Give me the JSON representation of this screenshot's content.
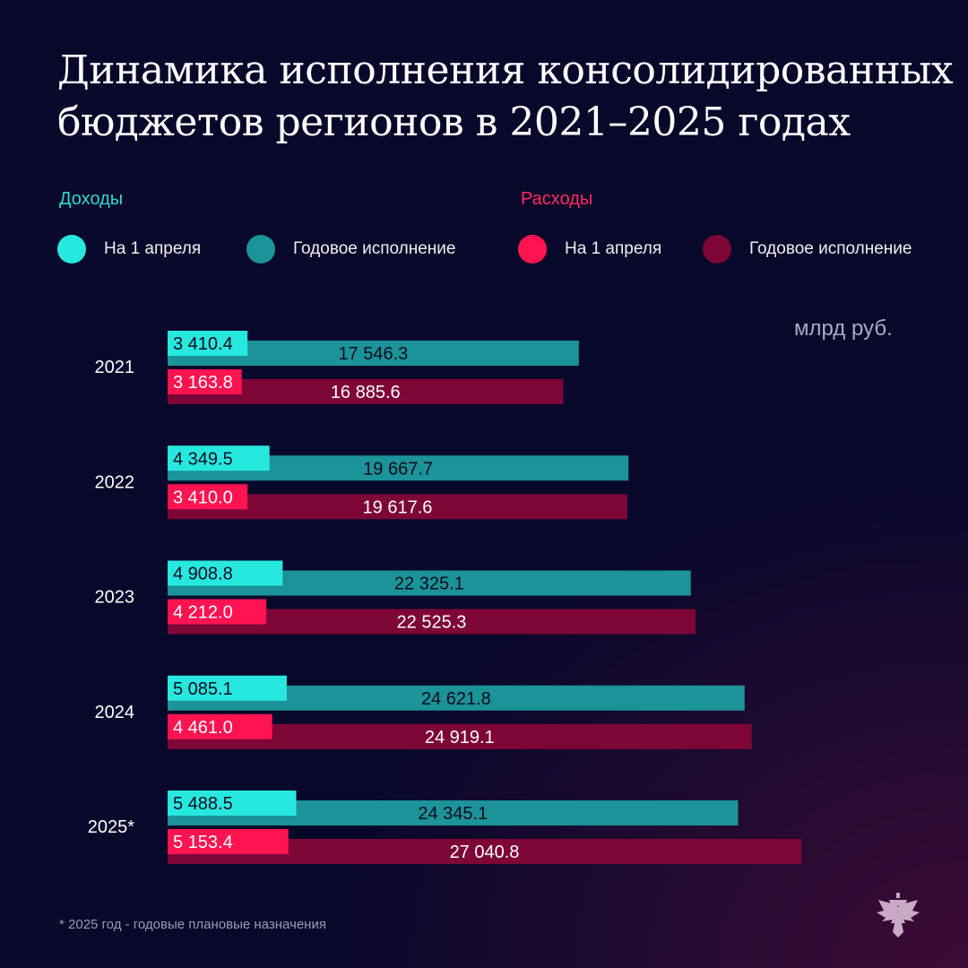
{
  "title_line1": "Динамика исполнения консолидированных",
  "title_line2": "бюджетов регионов в 2021–2025 годах",
  "legend": {
    "income_head": "Доходы",
    "expense_head": "Расходы",
    "items": [
      "На 1 апреля",
      "Годовое исполнение",
      "На 1 апреля",
      "Годовое исполнение"
    ]
  },
  "colors": {
    "income_apr": "#27e8df",
    "income_year": "#1b9398",
    "expense_apr": "#ff1350",
    "expense_year": "#7e0637",
    "income_head": "#2fd6d0",
    "expense_head": "#ff2a62"
  },
  "unit": "млрд руб.",
  "footnote": "* 2025 год - годовые плановые назначения",
  "chart_data": {
    "type": "bar",
    "orientation": "horizontal",
    "categories": [
      "2021",
      "2022",
      "2023",
      "2024",
      "2025*"
    ],
    "series": [
      {
        "name": "Доходы — На 1 апреля",
        "values": [
          3410.4,
          4349.5,
          4908.8,
          5085.1,
          5488.5
        ],
        "labels": [
          "3 410.4",
          "4 349.5",
          "4 908.8",
          "5 085.1",
          "5 488.5"
        ]
      },
      {
        "name": "Доходы — Годовое исполнение",
        "values": [
          17546.3,
          19667.7,
          22325.1,
          24621.8,
          24345.1
        ],
        "labels": [
          "17 546.3",
          "19 667.7",
          "22 325.1",
          "24 621.8",
          "24 345.1"
        ]
      },
      {
        "name": "Расходы — На 1 апреля",
        "values": [
          3163.8,
          3410.0,
          4212.0,
          4461.0,
          5153.4
        ],
        "labels": [
          "3 163.8",
          "3 410.0",
          "4 212.0",
          "4 461.0",
          "5 153.4"
        ]
      },
      {
        "name": "Расходы — Годовое исполнение",
        "values": [
          16885.6,
          19617.6,
          22525.3,
          24919.1,
          27040.8
        ],
        "labels": [
          "16 885.6",
          "19 617.6",
          "22 525.3",
          "24 919.1",
          "27 040.8"
        ]
      }
    ],
    "unit": "млрд руб.",
    "grid": false
  }
}
